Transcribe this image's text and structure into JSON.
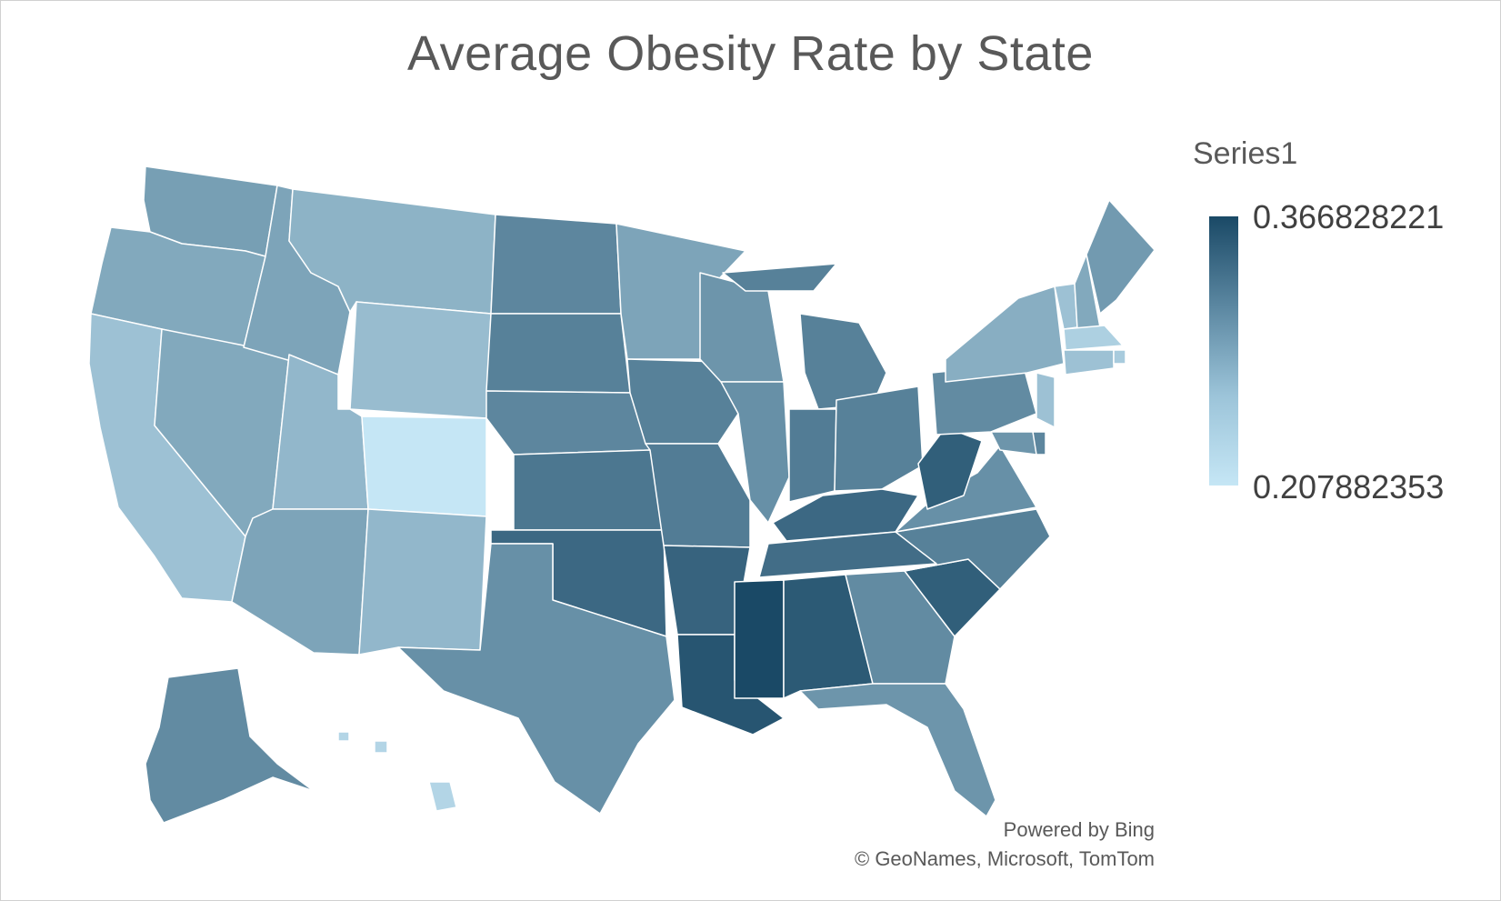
{
  "chart": {
    "title": "Average Obesity Rate by State",
    "attribution_line1": "Powered by Bing",
    "attribution_line2": "© GeoNames, Microsoft, TomTom"
  },
  "legend": {
    "series_name": "Series1",
    "max_label": "0.366828221",
    "min_label": "0.207882353",
    "color_high": "#1a4966",
    "color_low": "#c5e6f5"
  },
  "chart_data": {
    "type": "choropleth",
    "title": "Average Obesity Rate by State",
    "series_name": "Series1",
    "value_range": [
      0.207882353,
      0.366828221
    ],
    "states": {
      "WA": 0.28,
      "OR": 0.27,
      "CA": 0.245,
      "NV": 0.27,
      "ID": 0.275,
      "MT": 0.26,
      "WY": 0.25,
      "UT": 0.255,
      "CO": 0.208,
      "AZ": 0.275,
      "NM": 0.255,
      "ND": 0.305,
      "SD": 0.31,
      "NE": 0.305,
      "KS": 0.32,
      "OK": 0.335,
      "TX": 0.295,
      "MN": 0.275,
      "IA": 0.31,
      "MO": 0.315,
      "AR": 0.34,
      "LA": 0.355,
      "WI": 0.29,
      "IL": 0.295,
      "MI": 0.31,
      "IN": 0.315,
      "OH": 0.31,
      "KY": 0.335,
      "TN": 0.33,
      "MS": 0.367,
      "AL": 0.35,
      "GA": 0.3,
      "FL": 0.29,
      "SC": 0.345,
      "NC": 0.31,
      "VA": 0.295,
      "WV": 0.345,
      "PA": 0.3,
      "NY": 0.265,
      "VT": 0.245,
      "NH": 0.27,
      "ME": 0.285,
      "MA": 0.23,
      "CT": 0.245,
      "RI": 0.235,
      "NJ": 0.245,
      "DE": 0.305,
      "MD": 0.29,
      "AK": 0.3,
      "HI": 0.225
    }
  }
}
